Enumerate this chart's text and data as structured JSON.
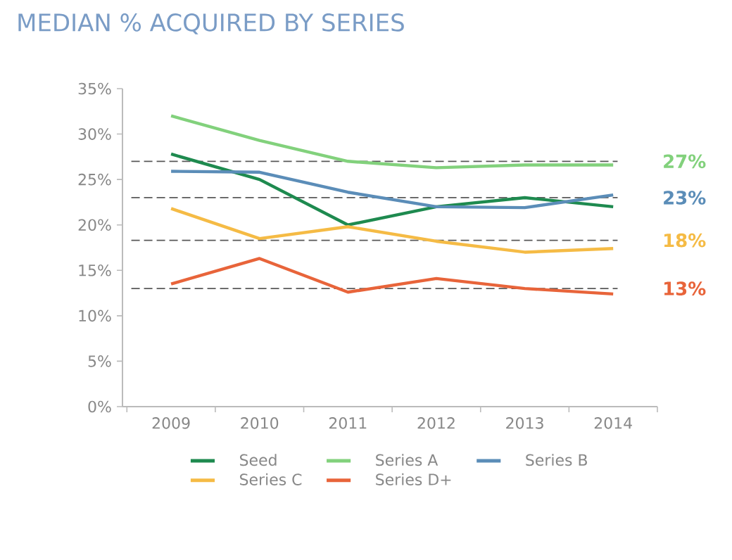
{
  "chart_data": {
    "type": "line",
    "title": "MEDIAN % ACQUIRED BY SERIES",
    "categories": [
      "2009",
      "2010",
      "2011",
      "2012",
      "2013",
      "2014"
    ],
    "series": [
      {
        "name": "Seed",
        "color": "#1e8a4f",
        "values": [
          27.8,
          25,
          20,
          22,
          23,
          22
        ]
      },
      {
        "name": "Series A",
        "color": "#82d17c",
        "values": [
          32,
          29.3,
          27,
          26.3,
          26.6,
          26.6
        ]
      },
      {
        "name": "Series B",
        "color": "#5b8db8",
        "values": [
          25.9,
          25.8,
          23.6,
          22,
          21.9,
          23.3
        ]
      },
      {
        "name": "Series C",
        "color": "#f5bb45",
        "values": [
          21.8,
          18.5,
          19.8,
          18.2,
          17,
          17.4
        ]
      },
      {
        "name": "Series D+",
        "color": "#e8643a",
        "values": [
          13.5,
          16.3,
          12.6,
          14.1,
          13,
          12.4
        ]
      }
    ],
    "ylim": [
      0,
      35
    ],
    "yticks": [
      {
        "value": 0,
        "label": "0%"
      },
      {
        "value": 5,
        "label": "5%"
      },
      {
        "value": 10,
        "label": "10%"
      },
      {
        "value": 15,
        "label": "15%"
      },
      {
        "value": 20,
        "label": "20%"
      },
      {
        "value": 25,
        "label": "25%"
      },
      {
        "value": 30,
        "label": "30%"
      },
      {
        "value": 35,
        "label": "35%"
      }
    ],
    "ref_lines": [
      {
        "axis": "y",
        "value": 27,
        "label": "27%",
        "color": "#595959",
        "line_style": "dashed"
      },
      {
        "axis": "y",
        "value": 23,
        "label": "23%",
        "color": "#595959",
        "line_style": "dashed"
      },
      {
        "axis": "y",
        "value": 18.3,
        "label": "18%",
        "color": "#595959",
        "line_style": "dashed"
      },
      {
        "axis": "y",
        "value": 13,
        "label": "13%",
        "color": "#595959",
        "line_style": "dashed"
      }
    ],
    "grid": false,
    "legend": "bottom",
    "marker": "none",
    "line_style": "solid"
  }
}
